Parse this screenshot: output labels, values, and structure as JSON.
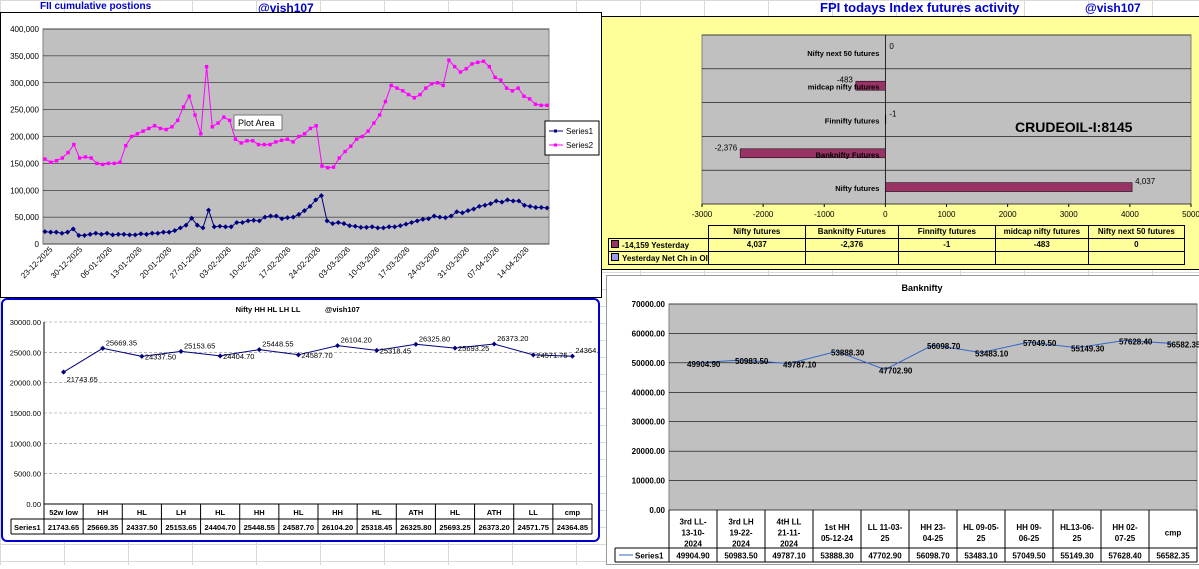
{
  "header": {
    "left_title": "FII cumulative postions",
    "handle_left": "@vish107",
    "right_title": "FPI todays Index futures activity",
    "handle_right": "@vish107"
  },
  "colors": {
    "series1": "#000080",
    "series2": "#ff00ff",
    "plot_bg": "#c0c0c0",
    "yellow_bg": "#ffff99",
    "bar_fill": "#993366"
  },
  "chart_data": [
    {
      "id": "fii",
      "type": "line",
      "title": "",
      "x_ticks": [
        "23-12-2025",
        "30-12-2025",
        "06-01-2026",
        "13-01-2026",
        "20-01-2026",
        "27-01-2026",
        "03-02-2026",
        "10-02-2026",
        "17-02-2026",
        "24-02-2026",
        "03-03-2026",
        "10-03-2026",
        "17-03-2026",
        "24-03-2026",
        "31-03-2026",
        "07-04-2026",
        "14-04-2026"
      ],
      "ylim": [
        0,
        400000
      ],
      "y_ticks": [
        "0",
        "50,000",
        "100,000",
        "150,000",
        "200,000",
        "250,000",
        "300,000",
        "350,000",
        "400,000"
      ],
      "annotation": "Plot Area",
      "legend": "right",
      "series": [
        {
          "name": "Series1",
          "values": [
            23000,
            22000,
            22000,
            20000,
            22000,
            28000,
            16000,
            16000,
            18000,
            20000,
            18000,
            20000,
            17000,
            18000,
            18000,
            17000,
            17000,
            19000,
            18000,
            20000,
            20000,
            22000,
            22000,
            25000,
            30000,
            35000,
            48000,
            35000,
            30000,
            63000,
            32000,
            33000,
            32000,
            32000,
            40000,
            40000,
            43000,
            44000,
            43000,
            50000,
            52000,
            52000,
            47000,
            49000,
            50000,
            55000,
            62000,
            70000,
            82000,
            90000,
            43000,
            38000,
            40000,
            38000,
            34000,
            33000,
            31000,
            31000,
            32000,
            30000,
            30000,
            32000,
            32000,
            34000,
            37000,
            40000,
            43000,
            46000,
            47000,
            52000,
            50000,
            49000,
            52000,
            60000,
            58000,
            62000,
            65000,
            70000,
            72000,
            75000,
            80000,
            78000,
            82000,
            80000,
            80000,
            72000,
            70000,
            68000,
            68000,
            67000
          ]
        },
        {
          "name": "Series2",
          "values": [
            158000,
            152000,
            155000,
            160000,
            170000,
            185000,
            160000,
            162000,
            160000,
            150000,
            148000,
            150000,
            150000,
            152000,
            183000,
            200000,
            205000,
            210000,
            215000,
            220000,
            215000,
            213000,
            218000,
            230000,
            255000,
            275000,
            240000,
            205000,
            330000,
            218000,
            225000,
            236000,
            230000,
            195000,
            188000,
            192000,
            192000,
            185000,
            185000,
            185000,
            190000,
            193000,
            195000,
            190000,
            200000,
            205000,
            215000,
            220000,
            145000,
            142000,
            143000,
            160000,
            172000,
            182000,
            195000,
            200000,
            210000,
            225000,
            240000,
            265000,
            295000,
            290000,
            285000,
            278000,
            272000,
            278000,
            290000,
            298000,
            300000,
            295000,
            342000,
            330000,
            320000,
            326000,
            335000,
            338000,
            340000,
            330000,
            310000,
            305000,
            290000,
            285000,
            290000,
            275000,
            270000,
            260000,
            258000,
            258000
          ]
        }
      ]
    },
    {
      "id": "fpi",
      "type": "bar",
      "orientation": "horizontal",
      "annotation": "CRUDEOIL-I:8145",
      "categories": [
        "Nifty next 50 futures",
        "midcap nifty futures",
        "Finnifty futures",
        "Banknifty Futures",
        "Nifty futures"
      ],
      "values": [
        0,
        -483,
        -1,
        -2376,
        4037
      ],
      "value_labels": [
        "0",
        "-483",
        "-1",
        "-2,376",
        "4,037"
      ],
      "xlim": [
        -3000,
        5000
      ],
      "x_ticks": [
        "-3000",
        "-2000",
        "-1000",
        "0",
        "1000",
        "2000",
        "3000",
        "4000",
        "5000"
      ],
      "table": {
        "headers": [
          "Nifty futures",
          "Banknifty Futures",
          "Finnifty futures",
          "midcap nifty futures",
          "Nifty next 50 futures"
        ],
        "rows": [
          {
            "label": "-14,159 Yesterday",
            "values": [
              "4,037",
              "-2,376",
              "-1",
              "-483",
              "0"
            ]
          },
          {
            "label": "Yesterday Net Ch in OI",
            "values": [
              "",
              "",
              "",
              "",
              ""
            ]
          }
        ]
      }
    },
    {
      "id": "nifty",
      "type": "line",
      "title": "Nifty HH HL LH LL",
      "handle": "@vish107",
      "categories": [
        "52w low",
        "HH",
        "HL",
        "LH",
        "HL",
        "HH",
        "HL",
        "HH",
        "HL",
        "ATH",
        "HL",
        "ATH",
        "LL",
        "cmp"
      ],
      "values": [
        21743.65,
        25669.35,
        24337.5,
        25153.65,
        24404.7,
        25448.55,
        24587.7,
        26104.2,
        25318.45,
        26325.8,
        25693.25,
        26373.2,
        24571.75,
        24364.85
      ],
      "value_labels": [
        "21743.65",
        "25669.35",
        "24337.50",
        "25153.65",
        "24404.70",
        "25448.55",
        "24587.70",
        "26104.20",
        "25318.45",
        "26325.80",
        "25693.25",
        "26373.20",
        "24571.75",
        "24364.85"
      ],
      "ylim": [
        0,
        30000
      ],
      "y_ticks": [
        "0.00",
        "5000.00",
        "10000.00",
        "15000.00",
        "20000.00",
        "25000.00",
        "30000.00"
      ],
      "series_name": "Series1"
    },
    {
      "id": "banknifty",
      "type": "line",
      "title": "Banknifty",
      "categories": [
        [
          "3rd LL-",
          "13-10-",
          "2024"
        ],
        [
          "3rd LH",
          "19-22-",
          "2024"
        ],
        [
          "4tH LL",
          "21-11-",
          "2024"
        ],
        [
          "1st HH",
          "05-12-24"
        ],
        [
          "LL 11-03-",
          "25"
        ],
        [
          "HH 23-",
          "04-25"
        ],
        [
          "HL 09-05-",
          "25"
        ],
        [
          "HH 09-",
          "06-25"
        ],
        [
          "HL13-06-",
          "25"
        ],
        [
          "HH 02-",
          "07-25"
        ],
        [
          "cmp"
        ]
      ],
      "values": [
        49904.9,
        50983.5,
        49787.1,
        53888.3,
        47702.9,
        56098.7,
        53483.1,
        57049.5,
        55149.3,
        57628.4,
        56582.35
      ],
      "value_labels": [
        "49904.90",
        "50983.50",
        "49787.10",
        "53888.30",
        "47702.90",
        "56098.70",
        "53483.10",
        "57049.50",
        "55149.30",
        "57628.40",
        "56582.35"
      ],
      "ylim": [
        0,
        70000
      ],
      "y_ticks": [
        "0.00",
        "10000.00",
        "20000.00",
        "30000.00",
        "40000.00",
        "50000.00",
        "60000.00",
        "70000.00"
      ],
      "series_name": "Series1"
    }
  ]
}
